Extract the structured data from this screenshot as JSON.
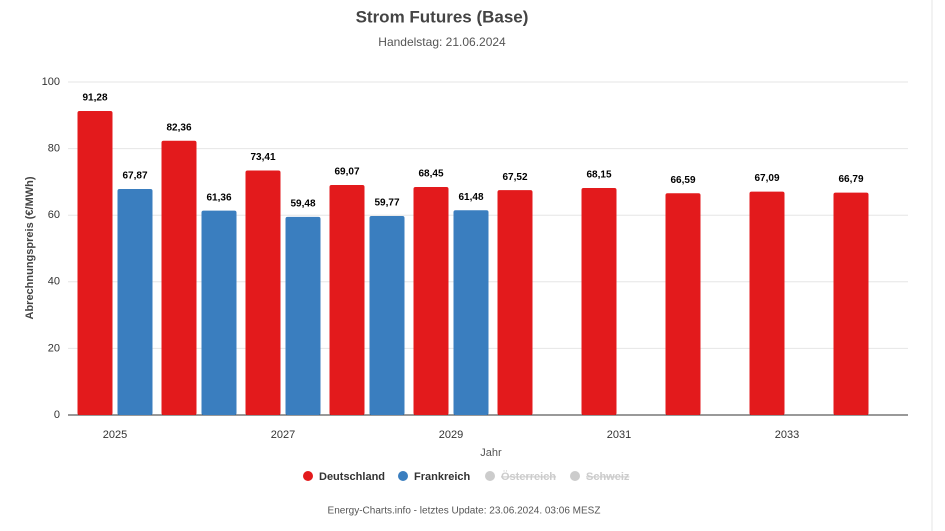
{
  "chart_data": {
    "type": "bar",
    "title": "Strom Futures (Base)",
    "subtitle": "Handelstag: 21.06.2024",
    "y_label": "Abrechnungspreis (€/MWh)",
    "x_label": "Jahr",
    "footer": "Energy-Charts.info - letztes Update: 23.06.2024. 03:06 MESZ",
    "categories": [
      "2025",
      null,
      "2027",
      null,
      "2029",
      null,
      "2031",
      null,
      "2033",
      null
    ],
    "series": [
      {
        "name": "Deutschland",
        "color": "#e31a1c",
        "visible": true,
        "values": [
          91.28,
          82.36,
          73.41,
          69.07,
          68.45,
          67.52,
          68.15,
          66.59,
          67.09,
          66.79
        ],
        "value_labels": [
          "91,28",
          "82,36",
          "73,41",
          "69,07",
          "68,45",
          "67,52",
          "68,15",
          "66,59",
          "67,09",
          "66,79"
        ]
      },
      {
        "name": "Frankreich",
        "color": "#3a7ebf",
        "visible": true,
        "values": [
          67.87,
          61.36,
          59.48,
          59.77,
          61.48,
          null,
          null,
          null,
          null,
          null
        ],
        "value_labels": [
          "67,87",
          "61,36",
          "59,48",
          "59,77",
          "61,48",
          null,
          null,
          null,
          null,
          null
        ]
      },
      {
        "name": "Österreich",
        "color": "#cccccc",
        "visible": false,
        "values": [
          null,
          null,
          null,
          null,
          null,
          null,
          null,
          null,
          null,
          null
        ]
      },
      {
        "name": "Schweiz",
        "color": "#cccccc",
        "visible": false,
        "values": [
          null,
          null,
          null,
          null,
          null,
          null,
          null,
          null,
          null,
          null
        ]
      }
    ],
    "ylim": [
      0,
      100
    ],
    "yticks": [
      0,
      20,
      40,
      60,
      80,
      100
    ],
    "grid": true,
    "legend": "bottom"
  }
}
